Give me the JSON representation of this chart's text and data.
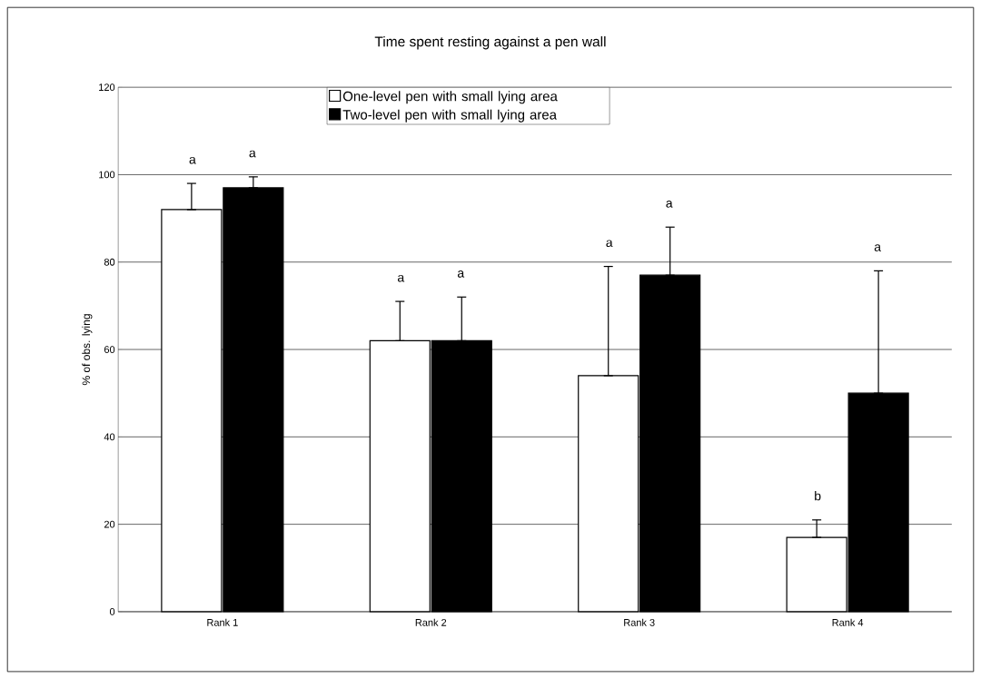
{
  "chart_data": {
    "type": "bar",
    "title": "Time spent resting against a pen wall",
    "ylabel": "% of obs. lying",
    "categories": [
      "Rank 1",
      "Rank 2",
      "Rank 3",
      "Rank 4"
    ],
    "series": [
      {
        "name": "One-level pen with small lying area",
        "color": "#ffffff",
        "values": [
          92,
          62,
          54,
          17
        ],
        "errors": [
          [
            92,
            98
          ],
          [
            62,
            71
          ],
          [
            54,
            79
          ],
          [
            17,
            21
          ]
        ]
      },
      {
        "name": "Two-level pen with small lying area",
        "color": "#000000",
        "values": [
          97,
          62,
          77,
          50
        ],
        "errors": [
          [
            97,
            99.5
          ],
          [
            62,
            72
          ],
          [
            77,
            88
          ],
          [
            50,
            78
          ]
        ]
      }
    ],
    "annotations": [
      "a",
      "a",
      "a",
      "a",
      "a",
      "a",
      "b",
      "a"
    ],
    "ylim": [
      0,
      120
    ],
    "yticks": [
      0,
      20,
      40,
      60,
      80,
      100,
      120
    ],
    "grid": "y",
    "legend": "top"
  }
}
